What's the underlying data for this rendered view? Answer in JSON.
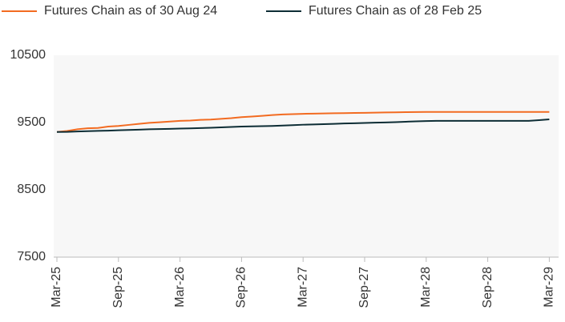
{
  "chart_data": {
    "type": "line",
    "categories": [
      "Mar-25",
      null,
      null,
      null,
      null,
      null,
      "Sep-25",
      null,
      null,
      null,
      null,
      null,
      "Mar-26",
      null,
      null,
      null,
      null,
      null,
      "Sep-26",
      null,
      null,
      null,
      null,
      null,
      "Mar-27",
      null,
      null,
      null,
      null,
      null,
      "Sep-27",
      null,
      null,
      null,
      null,
      null,
      "Mar-28",
      null,
      null,
      null,
      null,
      null,
      "Sep-28",
      null,
      null,
      null,
      null,
      null,
      "Mar-29"
    ],
    "series": [
      {
        "name": "Futures Chain as of 30 Aug 24",
        "color": "#f26b21",
        "values": [
          9360,
          9375,
          9400,
          9415,
          9420,
          9440,
          9450,
          9465,
          9480,
          9495,
          9505,
          9515,
          9525,
          9530,
          9540,
          9545,
          9555,
          9565,
          9580,
          9590,
          9600,
          9612,
          9620,
          9625,
          9630,
          9633,
          9635,
          9638,
          9640,
          9643,
          9645,
          9648,
          9650,
          9652,
          9655,
          9656,
          9657,
          9657,
          9657,
          9657,
          9657,
          9657,
          9657,
          9657,
          9657,
          9657,
          9657,
          9657,
          9657
        ]
      },
      {
        "name": "Futures Chain as of 28 Feb 25",
        "color": "#0d2d35",
        "values": [
          9360,
          9362,
          9368,
          9372,
          9376,
          9380,
          9386,
          9390,
          9395,
          9400,
          9403,
          9406,
          9410,
          9414,
          9418,
          9422,
          9428,
          9435,
          9440,
          9443,
          9446,
          9450,
          9456,
          9462,
          9468,
          9472,
          9476,
          9480,
          9486,
          9490,
          9494,
          9498,
          9502,
          9506,
          9512,
          9518,
          9522,
          9525,
          9525,
          9525,
          9525,
          9525,
          9525,
          9525,
          9525,
          9525,
          9525,
          9535,
          9548
        ]
      }
    ],
    "ylim": [
      7500,
      10500
    ],
    "yticks": [
      7500,
      8500,
      9500,
      10500
    ],
    "grid": false,
    "legend": "top"
  }
}
